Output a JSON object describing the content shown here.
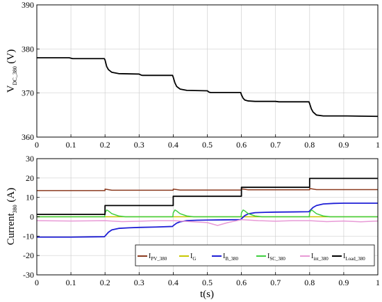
{
  "chart_data": [
    {
      "type": "line",
      "xlabel": "",
      "ylabel_main": "V",
      "ylabel_sub": "DC_380",
      "ylabel_unit": " (V)",
      "xlim": [
        0,
        1
      ],
      "ylim": [
        360,
        390
      ],
      "xticks": [
        0,
        0.1,
        0.2,
        0.3,
        0.4,
        0.5,
        0.6,
        0.7,
        0.8,
        0.9,
        1
      ],
      "xtick_labels": [
        "0",
        "0.1",
        "0.2",
        "0.3",
        "0.4",
        "0.5",
        "0.6",
        "0.7",
        "0.8",
        "0.9",
        "1"
      ],
      "yticks": [
        360,
        370,
        380,
        390
      ],
      "ytick_labels": [
        "360",
        "370",
        "380",
        "390"
      ],
      "grid": true,
      "series": [
        {
          "color": "#000000",
          "x": [
            0,
            0.095,
            0.105,
            0.198,
            0.2,
            0.205,
            0.21,
            0.22,
            0.24,
            0.3,
            0.305,
            0.31,
            0.398,
            0.4,
            0.405,
            0.41,
            0.42,
            0.44,
            0.5,
            0.505,
            0.51,
            0.598,
            0.6,
            0.605,
            0.61,
            0.62,
            0.64,
            0.7,
            0.71,
            0.798,
            0.8,
            0.805,
            0.81,
            0.82,
            0.84,
            0.9,
            0.91,
            1
          ],
          "y": [
            378,
            378,
            377.8,
            377.8,
            377.5,
            376.0,
            375.3,
            374.7,
            374.4,
            374.3,
            374.1,
            374.0,
            374.0,
            373.6,
            372.3,
            371.5,
            370.9,
            370.6,
            370.5,
            370.2,
            370.1,
            370.1,
            369.6,
            368.8,
            368.4,
            368.2,
            368.1,
            368.1,
            368.0,
            368.0,
            367.6,
            366.4,
            365.7,
            365.0,
            364.8,
            364.8,
            364.8,
            364.7
          ]
        }
      ]
    },
    {
      "type": "line",
      "xlabel": "t(s)",
      "ylabel_main": "Current",
      "ylabel_sub": "380",
      "ylabel_unit": " (A)",
      "xlim": [
        0,
        1
      ],
      "ylim": [
        -30,
        30
      ],
      "xticks": [
        0,
        0.1,
        0.2,
        0.3,
        0.4,
        0.5,
        0.6,
        0.7,
        0.8,
        0.9,
        1
      ],
      "xtick_labels": [
        "0",
        "0.1",
        "0.2",
        "0.3",
        "0.4",
        "0.5",
        "0.6",
        "0.7",
        "0.8",
        "0.9",
        "1"
      ],
      "yticks": [
        -30,
        -20,
        -10,
        0,
        10,
        20,
        30
      ],
      "ytick_labels": [
        "-30",
        "-20",
        "-10",
        "0",
        "10",
        "20",
        "30"
      ],
      "grid": true,
      "legend_placement": "bottom-right",
      "series": [
        {
          "name_main": "I",
          "name_sub": "PV_380",
          "color": "#8b3a1e",
          "x": [
            0,
            0.2,
            0.2,
            0.22,
            0.4,
            0.4,
            0.42,
            0.6,
            0.6,
            0.62,
            0.8,
            0.8,
            0.82,
            1
          ],
          "y": [
            13.5,
            13.5,
            14.3,
            13.7,
            13.7,
            14.3,
            13.8,
            13.8,
            14.4,
            13.9,
            13.9,
            14.6,
            14.0,
            14.0
          ]
        },
        {
          "name_main": "I",
          "name_sub": "G",
          "color": "#c8c800",
          "x": [
            0,
            1
          ],
          "y": [
            0,
            0
          ]
        },
        {
          "name_main": "I",
          "name_sub": "B_380",
          "color": "#1f1fd6",
          "x": [
            0,
            0.1,
            0.198,
            0.2,
            0.21,
            0.22,
            0.24,
            0.27,
            0.3,
            0.35,
            0.398,
            0.4,
            0.41,
            0.42,
            0.44,
            0.47,
            0.5,
            0.55,
            0.598,
            0.6,
            0.61,
            0.62,
            0.64,
            0.67,
            0.7,
            0.75,
            0.798,
            0.8,
            0.81,
            0.82,
            0.84,
            0.87,
            0.9,
            1
          ],
          "y": [
            -10.5,
            -10.5,
            -10.3,
            -10.0,
            -8.0,
            -6.8,
            -6.0,
            -5.7,
            -5.5,
            -5.3,
            -5.0,
            -4.6,
            -3.3,
            -2.6,
            -2.0,
            -1.8,
            -1.7,
            -1.6,
            -1.5,
            -1.0,
            0.6,
            1.5,
            2.1,
            2.3,
            2.4,
            2.5,
            2.6,
            3.0,
            4.8,
            5.8,
            6.6,
            6.9,
            7.0,
            7.0
          ]
        },
        {
          "name_main": "I",
          "name_sub": "SC_380",
          "color": "#3fcf3f",
          "x": [
            0,
            0.199,
            0.2,
            0.205,
            0.21,
            0.22,
            0.24,
            0.26,
            0.399,
            0.4,
            0.405,
            0.41,
            0.42,
            0.44,
            0.46,
            0.599,
            0.6,
            0.605,
            0.61,
            0.62,
            0.64,
            0.66,
            0.799,
            0.8,
            0.805,
            0.81,
            0.82,
            0.84,
            0.86,
            1
          ],
          "y": [
            0,
            0,
            2.0,
            3.5,
            3.0,
            1.6,
            0.4,
            0,
            0,
            2.0,
            3.5,
            3.0,
            1.6,
            0.4,
            0,
            0,
            2.0,
            3.5,
            3.0,
            1.6,
            0.4,
            0,
            0,
            2.0,
            3.5,
            3.0,
            1.6,
            0.4,
            0,
            0
          ]
        },
        {
          "name_main": "I",
          "name_sub": "int_380",
          "color": "#e89ad6",
          "x": [
            0,
            0.1,
            0.2,
            0.25,
            0.3,
            0.35,
            0.4,
            0.45,
            0.5,
            0.53,
            0.56,
            0.6,
            0.65,
            0.7,
            0.75,
            0.8,
            0.85,
            0.9,
            0.95,
            1
          ],
          "y": [
            -2.0,
            -2.2,
            -2.0,
            -2.5,
            -2.3,
            -2.0,
            -2.0,
            -2.5,
            -3.0,
            -4.5,
            -3.0,
            -1.5,
            -2.0,
            -2.3,
            -2.0,
            -2.0,
            -2.5,
            -2.2,
            -2.6,
            -2.2
          ]
        },
        {
          "name_main": "I",
          "name_sub": "Load_380",
          "color": "#000000",
          "x": [
            0,
            0.2,
            0.2,
            0.4,
            0.4,
            0.6,
            0.6,
            0.8,
            0.8,
            1
          ],
          "y": [
            1.2,
            1.2,
            5.8,
            5.8,
            10.6,
            10.6,
            15.2,
            15.2,
            19.8,
            19.8
          ]
        }
      ]
    }
  ]
}
